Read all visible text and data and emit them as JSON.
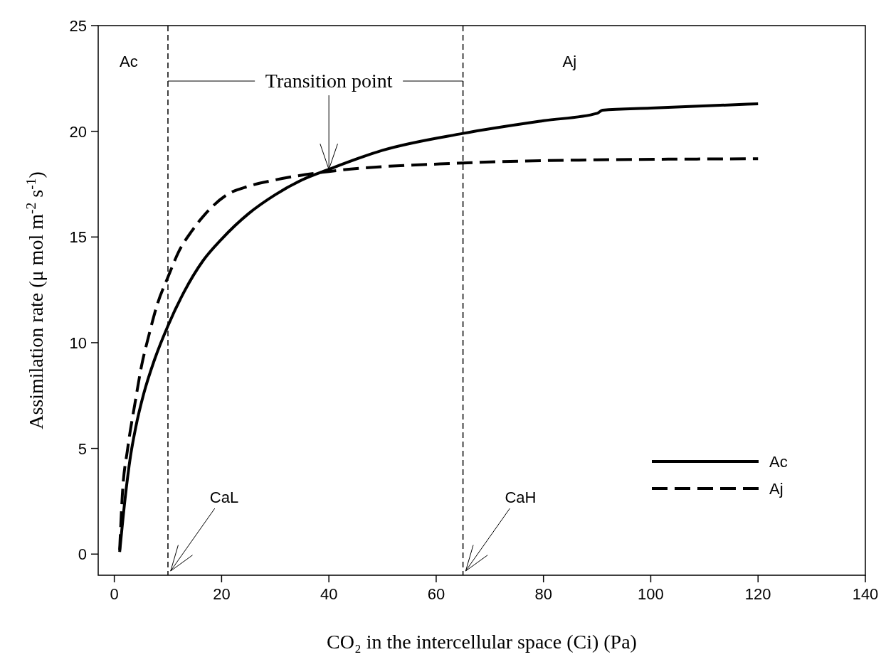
{
  "chart_data": {
    "type": "line",
    "xlabel": "CO₂ in the intercellular space (Ci) (Pa)",
    "ylabel": "Assimilation rate (μ mol m$^{-2}$ s$^{-1}$)",
    "xlim": [
      -3,
      140
    ],
    "ylim": [
      -1,
      25
    ],
    "xticks": [
      0,
      20,
      40,
      60,
      80,
      100,
      120,
      140
    ],
    "yticks": [
      0,
      5,
      10,
      15,
      20,
      25
    ],
    "grid": false,
    "legend": "bottom right",
    "marker": "none",
    "series": [
      {
        "name": "Ac",
        "color": "#000000",
        "line_style": "solid",
        "x": [
          1,
          2,
          3,
          4,
          5.5,
          7.5,
          10,
          13,
          16.6,
          20,
          25,
          30,
          35,
          40,
          50,
          65,
          80,
          90,
          91,
          100,
          120
        ],
        "values": [
          0.1,
          2.6,
          4.6,
          6.0,
          7.6,
          9.2,
          10.8,
          12.4,
          13.9,
          14.9,
          16.1,
          17.0,
          17.7,
          18.2,
          19.1,
          19.9,
          20.5,
          20.85,
          21.0,
          21.1,
          21.3
        ]
      },
      {
        "name": "Aj",
        "color": "#000000",
        "line_style": "dashed",
        "x": [
          1,
          1.5,
          2.5,
          3.9,
          5,
          6.6,
          8,
          10,
          12,
          14.5,
          17,
          21,
          25,
          30,
          40,
          65,
          90,
          120
        ],
        "values": [
          0.2,
          2.8,
          5.0,
          7.2,
          8.8,
          10.5,
          11.8,
          13.1,
          14.3,
          15.3,
          16.1,
          17.0,
          17.4,
          17.7,
          18.1,
          18.5,
          18.65,
          18.7
        ]
      }
    ],
    "ref_lines": [
      {
        "axis": "x",
        "value": 10,
        "line_style": "dashed",
        "color": "#000000"
      },
      {
        "axis": "x",
        "value": 65,
        "line_style": "dashed",
        "color": "#000000"
      }
    ],
    "annotations": [
      "Ac",
      "Aj",
      {
        "text": "Transition point",
        "x": 40,
        "y": 18.2
      },
      {
        "text": "CaL",
        "x": 10.5,
        "y": -0.8
      },
      {
        "text": "CaH",
        "x": 65.5,
        "y": -0.8
      }
    ]
  }
}
